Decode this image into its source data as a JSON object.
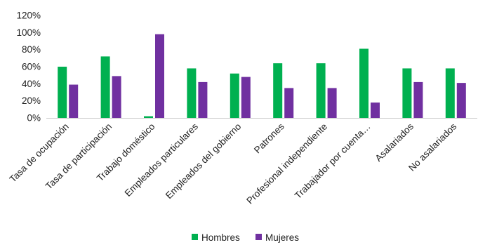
{
  "chart_data": {
    "type": "bar",
    "categories": [
      "Tasa de ocupación",
      "Tasa de participación",
      "Trabajo doméstico",
      "Empleados particulares",
      "Empleados del gobierno",
      "Patrones",
      "Profesional independiente",
      "Trabajador por cuenta…",
      "Asalariados",
      "No asalariados"
    ],
    "series": [
      {
        "name": "Hombres",
        "color": "#00b050",
        "values": [
          60,
          72,
          2,
          58,
          52,
          64,
          64,
          81,
          58,
          58
        ]
      },
      {
        "name": "Mujeres",
        "color": "#7030a0",
        "values": [
          39,
          49,
          98,
          42,
          48,
          35,
          35,
          18,
          42,
          41
        ]
      }
    ],
    "y_ticks": [
      "0%",
      "20%",
      "40%",
      "60%",
      "80%",
      "100%",
      "120%"
    ],
    "ylim": [
      0,
      120
    ],
    "grid": false,
    "legend": "bottom-center"
  }
}
